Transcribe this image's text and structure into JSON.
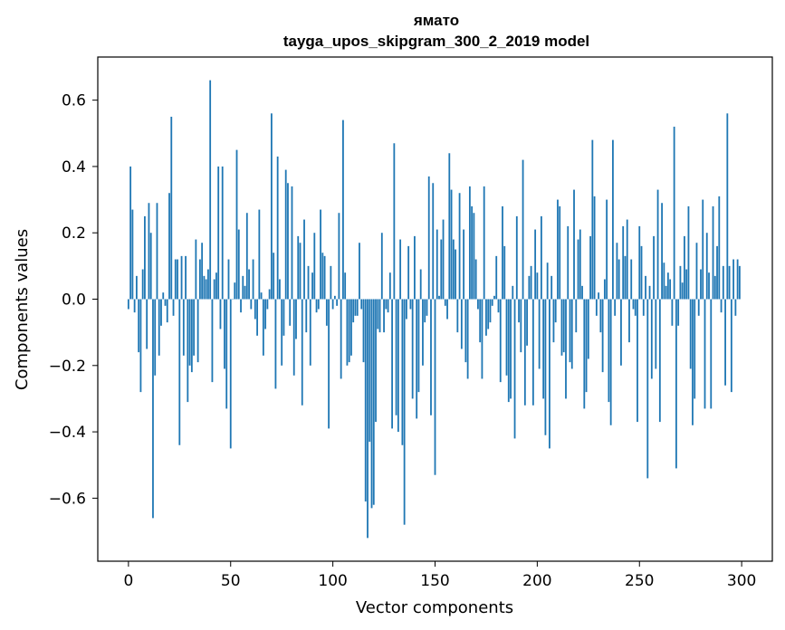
{
  "chart_data": {
    "type": "bar",
    "title": "ямато",
    "subtitle": "tayga_upos_skipgram_300_2_2019 model",
    "xlabel": "Vector components",
    "ylabel": "Components values",
    "xlim": [
      -15,
      315
    ],
    "ylim": [
      -0.79,
      0.73
    ],
    "xticks": [
      0,
      50,
      100,
      150,
      200,
      250,
      300
    ],
    "yticks": [
      -0.6,
      -0.4,
      -0.2,
      0.0,
      0.2,
      0.4,
      0.6
    ],
    "ytick_labels": [
      "−0.6",
      "−0.4",
      "−0.2",
      "0.0",
      "0.2",
      "0.4",
      "0.6"
    ],
    "bar_color": "#1f77b4",
    "grid": false,
    "x": "indices 0..299",
    "values": [
      -0.03,
      0.4,
      0.27,
      -0.04,
      0.07,
      -0.16,
      -0.28,
      0.09,
      0.25,
      -0.15,
      0.29,
      0.2,
      -0.66,
      -0.23,
      0.29,
      -0.17,
      -0.08,
      0.02,
      -0.02,
      -0.07,
      0.32,
      0.55,
      -0.05,
      0.12,
      0.12,
      -0.44,
      0.13,
      -0.17,
      0.13,
      -0.31,
      -0.2,
      -0.22,
      -0.17,
      0.18,
      -0.19,
      0.12,
      0.17,
      0.07,
      0.06,
      0.09,
      0.66,
      -0.25,
      0.06,
      0.08,
      0.4,
      -0.09,
      0.4,
      -0.21,
      -0.33,
      0.12,
      -0.45,
      0.0,
      0.05,
      0.45,
      0.21,
      -0.04,
      0.07,
      0.04,
      0.26,
      0.09,
      -0.03,
      0.12,
      -0.06,
      -0.11,
      0.27,
      0.02,
      -0.17,
      -0.09,
      -0.03,
      0.03,
      0.56,
      0.14,
      -0.27,
      0.43,
      0.06,
      -0.2,
      -0.11,
      0.39,
      0.35,
      -0.08,
      0.34,
      -0.23,
      -0.12,
      0.19,
      0.17,
      -0.32,
      0.24,
      -0.1,
      0.1,
      -0.2,
      0.08,
      0.2,
      -0.04,
      -0.03,
      0.27,
      0.14,
      0.13,
      -0.08,
      -0.39,
      0.1,
      -0.03,
      0.01,
      -0.02,
      0.26,
      -0.24,
      0.54,
      0.08,
      -0.2,
      -0.19,
      -0.17,
      -0.07,
      -0.05,
      -0.05,
      0.17,
      -0.03,
      -0.19,
      -0.61,
      -0.72,
      -0.43,
      -0.63,
      -0.62,
      -0.37,
      -0.09,
      -0.1,
      0.2,
      -0.1,
      -0.03,
      -0.04,
      0.08,
      -0.39,
      0.47,
      -0.35,
      -0.4,
      0.18,
      -0.44,
      -0.68,
      -0.06,
      0.16,
      -0.03,
      -0.3,
      0.19,
      -0.36,
      -0.28,
      0.09,
      -0.2,
      -0.07,
      -0.05,
      0.37,
      -0.35,
      0.35,
      -0.53,
      0.21,
      0.01,
      0.18,
      0.24,
      -0.02,
      -0.06,
      0.44,
      0.33,
      0.18,
      0.15,
      -0.1,
      0.32,
      -0.15,
      0.21,
      -0.19,
      -0.24,
      0.34,
      0.28,
      0.26,
      0.12,
      -0.03,
      -0.13,
      -0.24,
      0.34,
      -0.11,
      -0.09,
      -0.07,
      -0.02,
      0.01,
      0.13,
      -0.04,
      -0.25,
      0.28,
      0.16,
      -0.23,
      -0.31,
      -0.3,
      0.04,
      -0.42,
      0.25,
      -0.07,
      -0.16,
      0.42,
      -0.32,
      -0.14,
      0.07,
      0.1,
      -0.32,
      0.21,
      0.08,
      -0.21,
      0.25,
      -0.3,
      -0.41,
      0.11,
      -0.45,
      0.07,
      -0.13,
      -0.07,
      0.3,
      0.28,
      -0.17,
      -0.16,
      -0.3,
      0.22,
      -0.19,
      -0.21,
      0.33,
      -0.1,
      0.18,
      0.21,
      0.04,
      -0.33,
      -0.28,
      -0.18,
      0.19,
      0.48,
      0.31,
      -0.05,
      0.02,
      -0.1,
      -0.22,
      0.06,
      0.3,
      -0.31,
      -0.38,
      0.48,
      -0.05,
      0.17,
      0.12,
      -0.2,
      0.22,
      0.13,
      0.24,
      -0.13,
      0.12,
      -0.03,
      -0.05,
      -0.37,
      0.22,
      0.16,
      -0.05,
      0.07,
      -0.54,
      0.04,
      -0.24,
      0.19,
      -0.21,
      0.33,
      -0.37,
      0.29,
      0.11,
      0.04,
      0.08,
      0.06,
      -0.08,
      0.52,
      -0.51,
      -0.08,
      0.1,
      0.05,
      0.19,
      0.09,
      0.28,
      -0.21,
      -0.38,
      -0.3,
      0.17,
      -0.05,
      0.09,
      0.3,
      -0.33,
      0.2,
      0.08,
      -0.33,
      0.28,
      0.07,
      0.16,
      0.31,
      -0.04,
      0.1,
      -0.26,
      0.56,
      0.1,
      -0.28,
      0.12,
      -0.05,
      0.12,
      0.1
    ]
  }
}
